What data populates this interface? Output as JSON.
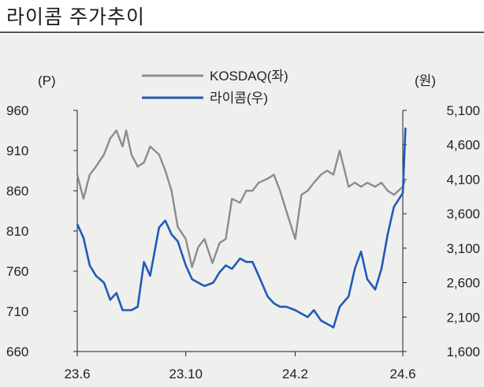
{
  "title": "라이콤 주가추이",
  "chart_data": {
    "type": "line",
    "x_ticks": [
      "23.6",
      "23.10",
      "24.2",
      "24.6"
    ],
    "y_left": {
      "unit": "(P)",
      "ticks": [
        "960",
        "910",
        "860",
        "810",
        "760",
        "710",
        "660"
      ],
      "range": [
        660,
        960
      ]
    },
    "y_right": {
      "unit": "(원)",
      "ticks": [
        "5,100",
        "4,600",
        "4,100",
        "3,600",
        "3,100",
        "2,600",
        "2,100",
        "1,600"
      ],
      "range": [
        1600,
        5100
      ]
    },
    "series": [
      {
        "name": "KOSDAQ(좌)",
        "axis": "left",
        "color": "#8c8c8c",
        "x": [
          "2023-06-01",
          "2023-06-08",
          "2023-06-15",
          "2023-06-22",
          "2023-07-01",
          "2023-07-08",
          "2023-07-15",
          "2023-07-22",
          "2023-07-26",
          "2023-08-01",
          "2023-08-08",
          "2023-08-15",
          "2023-08-22",
          "2023-09-01",
          "2023-09-08",
          "2023-09-15",
          "2023-09-22",
          "2023-10-01",
          "2023-10-08",
          "2023-10-15",
          "2023-10-22",
          "2023-10-31",
          "2023-11-08",
          "2023-11-15",
          "2023-11-22",
          "2023-12-01",
          "2023-12-08",
          "2023-12-15",
          "2023-12-22",
          "2024-01-01",
          "2024-01-08",
          "2024-01-15",
          "2024-01-22",
          "2024-02-01",
          "2024-02-08",
          "2024-02-15",
          "2024-02-22",
          "2024-03-01",
          "2024-03-08",
          "2024-03-15",
          "2024-03-22",
          "2024-04-01",
          "2024-04-08",
          "2024-04-15",
          "2024-04-22",
          "2024-05-01",
          "2024-05-08",
          "2024-05-15",
          "2024-05-22",
          "2024-06-01",
          "2024-06-04"
        ],
        "values": [
          880,
          850,
          880,
          890,
          905,
          925,
          935,
          915,
          935,
          905,
          890,
          895,
          915,
          905,
          885,
          860,
          815,
          800,
          765,
          790,
          800,
          770,
          795,
          800,
          850,
          845,
          860,
          860,
          870,
          875,
          880,
          860,
          835,
          800,
          855,
          860,
          870,
          880,
          885,
          880,
          910,
          865,
          870,
          865,
          870,
          865,
          870,
          860,
          855,
          865,
          875
        ]
      },
      {
        "name": "라이콤(우)",
        "axis": "right",
        "color": "#1f5bb8",
        "x": [
          "2023-06-01",
          "2023-06-08",
          "2023-06-15",
          "2023-06-22",
          "2023-07-01",
          "2023-07-08",
          "2023-07-15",
          "2023-07-22",
          "2023-08-01",
          "2023-08-08",
          "2023-08-15",
          "2023-08-22",
          "2023-09-01",
          "2023-09-08",
          "2023-09-15",
          "2023-09-22",
          "2023-10-01",
          "2023-10-08",
          "2023-10-15",
          "2023-10-22",
          "2023-11-01",
          "2023-11-08",
          "2023-11-15",
          "2023-11-22",
          "2023-12-01",
          "2023-12-08",
          "2023-12-15",
          "2023-12-22",
          "2024-01-01",
          "2024-01-08",
          "2024-01-15",
          "2024-01-22",
          "2024-02-01",
          "2024-02-08",
          "2024-02-15",
          "2024-02-22",
          "2024-03-01",
          "2024-03-08",
          "2024-03-15",
          "2024-03-22",
          "2024-04-01",
          "2024-04-08",
          "2024-04-15",
          "2024-04-22",
          "2024-05-01",
          "2024-05-08",
          "2024-05-15",
          "2024-05-22",
          "2024-06-01",
          "2024-06-04"
        ],
        "values": [
          3450,
          3250,
          2850,
          2700,
          2600,
          2350,
          2450,
          2200,
          2200,
          2250,
          2900,
          2700,
          3400,
          3500,
          3300,
          3200,
          2850,
          2650,
          2600,
          2550,
          2600,
          2750,
          2850,
          2800,
          2950,
          2900,
          2900,
          2700,
          2400,
          2300,
          2250,
          2250,
          2200,
          2150,
          2100,
          2200,
          2050,
          2000,
          1950,
          2250,
          2400,
          2800,
          3050,
          2650,
          2500,
          2800,
          3300,
          3700,
          3900,
          4850
        ]
      }
    ]
  }
}
